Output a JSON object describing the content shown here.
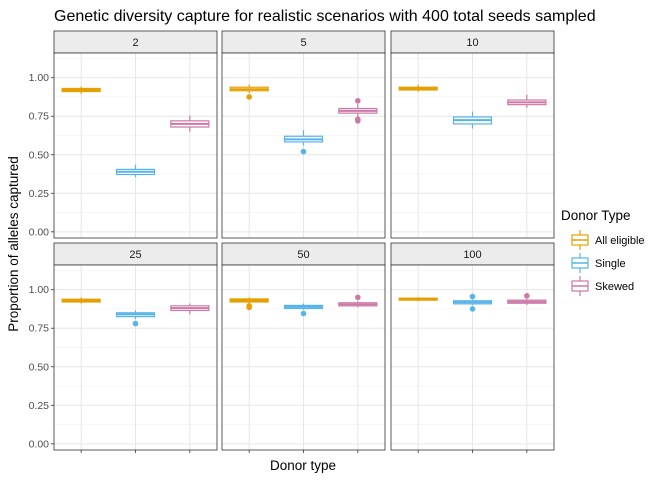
{
  "chart_data": {
    "type": "box",
    "title": "Genetic diversity capture for realistic scenarios with 400 total seeds sampled",
    "xlabel": "Donor type",
    "ylabel": "Proportion of alleles captured",
    "ylim": [
      -0.04,
      1.16
    ],
    "yticks": [
      "0.00",
      "0.25",
      "0.50",
      "0.75",
      "1.00"
    ],
    "grid": true,
    "categories": [
      "All eligible",
      "Single",
      "Skewed"
    ],
    "legend": {
      "title": "Donor Type",
      "placement": "right",
      "entries": [
        "All eligible",
        "Single",
        "Skewed"
      ]
    },
    "colors": {
      "All eligible": "#E69F00",
      "Single": "#56B4E9",
      "Skewed": "#CC79A7"
    },
    "facets": [
      {
        "label": "2",
        "boxes": [
          {
            "group": "All eligible",
            "min": 0.895,
            "q1": 0.91,
            "median": 0.92,
            "q3": 0.93,
            "max": 0.942,
            "outliers": []
          },
          {
            "group": "Single",
            "min": 0.355,
            "q1": 0.372,
            "median": 0.39,
            "q3": 0.405,
            "max": 0.435,
            "outliers": []
          },
          {
            "group": "Skewed",
            "min": 0.65,
            "q1": 0.68,
            "median": 0.7,
            "q3": 0.72,
            "max": 0.755,
            "outliers": []
          }
        ]
      },
      {
        "label": "5",
        "boxes": [
          {
            "group": "All eligible",
            "min": 0.9,
            "q1": 0.915,
            "median": 0.925,
            "q3": 0.938,
            "max": 0.955,
            "outliers": [
              0.875
            ]
          },
          {
            "group": "Single",
            "min": 0.56,
            "q1": 0.583,
            "median": 0.6,
            "q3": 0.62,
            "max": 0.66,
            "outliers": [
              0.52
            ]
          },
          {
            "group": "Skewed",
            "min": 0.745,
            "q1": 0.77,
            "median": 0.785,
            "q3": 0.8,
            "max": 0.83,
            "outliers": [
              0.72,
              0.73,
              0.85
            ]
          }
        ]
      },
      {
        "label": "10",
        "boxes": [
          {
            "group": "All eligible",
            "min": 0.91,
            "q1": 0.92,
            "median": 0.93,
            "q3": 0.938,
            "max": 0.955,
            "outliers": []
          },
          {
            "group": "Single",
            "min": 0.67,
            "q1": 0.7,
            "median": 0.725,
            "q3": 0.745,
            "max": 0.78,
            "outliers": []
          },
          {
            "group": "Skewed",
            "min": 0.805,
            "q1": 0.825,
            "median": 0.84,
            "q3": 0.855,
            "max": 0.89,
            "outliers": []
          }
        ]
      },
      {
        "label": "25",
        "boxes": [
          {
            "group": "All eligible",
            "min": 0.91,
            "q1": 0.92,
            "median": 0.93,
            "q3": 0.938,
            "max": 0.95,
            "outliers": []
          },
          {
            "group": "Single",
            "min": 0.81,
            "q1": 0.825,
            "median": 0.84,
            "q3": 0.85,
            "max": 0.865,
            "outliers": [
              0.78
            ]
          },
          {
            "group": "Skewed",
            "min": 0.84,
            "q1": 0.865,
            "median": 0.88,
            "q3": 0.895,
            "max": 0.91,
            "outliers": []
          }
        ]
      },
      {
        "label": "50",
        "boxes": [
          {
            "group": "All eligible",
            "min": 0.905,
            "q1": 0.92,
            "median": 0.93,
            "q3": 0.94,
            "max": 0.95,
            "outliers": [
              0.885,
              0.895
            ]
          },
          {
            "group": "Single",
            "min": 0.87,
            "q1": 0.878,
            "median": 0.888,
            "q3": 0.898,
            "max": 0.91,
            "outliers": [
              0.845
            ]
          },
          {
            "group": "Skewed",
            "min": 0.885,
            "q1": 0.895,
            "median": 0.905,
            "q3": 0.915,
            "max": 0.925,
            "outliers": [
              0.95
            ]
          }
        ]
      },
      {
        "label": "100",
        "boxes": [
          {
            "group": "All eligible",
            "min": 0.925,
            "q1": 0.932,
            "median": 0.938,
            "q3": 0.945,
            "max": 0.95,
            "outliers": []
          },
          {
            "group": "Single",
            "min": 0.9,
            "q1": 0.908,
            "median": 0.918,
            "q3": 0.928,
            "max": 0.935,
            "outliers": [
              0.875,
              0.955
            ]
          },
          {
            "group": "Skewed",
            "min": 0.9,
            "q1": 0.912,
            "median": 0.922,
            "q3": 0.932,
            "max": 0.94,
            "outliers": [
              0.96
            ]
          }
        ]
      }
    ]
  }
}
